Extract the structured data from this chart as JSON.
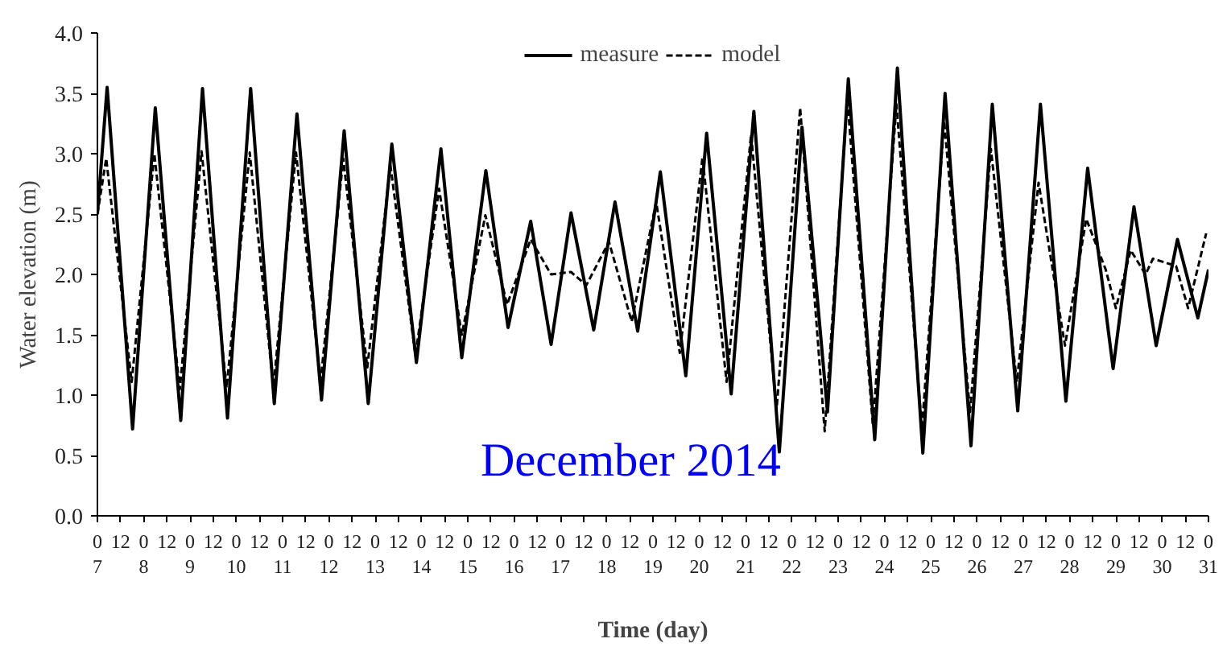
{
  "chart_data": {
    "type": "line",
    "xlabel": "Time (day)",
    "ylabel": "Water elevation (m)",
    "annotations": [
      "December 2014"
    ],
    "xlim": [
      "2014-12-07T00:00",
      "2014-12-31T00:00"
    ],
    "ylim": [
      0,
      4
    ],
    "xticks": [
      {
        "value": "2014-12-07T00:00",
        "label": "0\n7"
      },
      {
        "value": "2014-12-07T12:00",
        "label": "12"
      },
      {
        "value": "2014-12-08T00:00",
        "label": "0\n8"
      },
      {
        "value": "2014-12-08T12:00",
        "label": "12"
      },
      {
        "value": "2014-12-09T00:00",
        "label": "0\n9"
      },
      {
        "value": "2014-12-09T12:00",
        "label": "12"
      },
      {
        "value": "2014-12-10T00:00",
        "label": "0\n10"
      },
      {
        "value": "2014-12-10T12:00",
        "label": "12"
      },
      {
        "value": "2014-12-11T00:00",
        "label": "0\n11"
      },
      {
        "value": "2014-12-11T12:00",
        "label": "12"
      },
      {
        "value": "2014-12-12T00:00",
        "label": "0\n12"
      },
      {
        "value": "2014-12-12T12:00",
        "label": "12"
      },
      {
        "value": "2014-12-13T00:00",
        "label": "0\n13"
      },
      {
        "value": "2014-12-13T12:00",
        "label": "12"
      },
      {
        "value": "2014-12-14T00:00",
        "label": "0\n14"
      },
      {
        "value": "2014-12-14T12:00",
        "label": "12"
      },
      {
        "value": "2014-12-15T00:00",
        "label": "0\n15"
      },
      {
        "value": "2014-12-15T12:00",
        "label": "12"
      },
      {
        "value": "2014-12-16T00:00",
        "label": "0\n16"
      },
      {
        "value": "2014-12-16T12:00",
        "label": "12"
      },
      {
        "value": "2014-12-17T00:00",
        "label": "0\n17"
      },
      {
        "value": "2014-12-17T12:00",
        "label": "12"
      },
      {
        "value": "2014-12-18T00:00",
        "label": "0\n18"
      },
      {
        "value": "2014-12-18T12:00",
        "label": "12"
      },
      {
        "value": "2014-12-19T00:00",
        "label": "0\n19"
      },
      {
        "value": "2014-12-19T12:00",
        "label": "12"
      },
      {
        "value": "2014-12-20T00:00",
        "label": "0\n20"
      },
      {
        "value": "2014-12-20T12:00",
        "label": "12"
      },
      {
        "value": "2014-12-21T00:00",
        "label": "0\n21"
      },
      {
        "value": "2014-12-21T12:00",
        "label": "12"
      },
      {
        "value": "2014-12-22T00:00",
        "label": "0\n22"
      },
      {
        "value": "2014-12-22T12:00",
        "label": "12"
      },
      {
        "value": "2014-12-23T00:00",
        "label": "0\n23"
      },
      {
        "value": "2014-12-23T12:00",
        "label": "12"
      },
      {
        "value": "2014-12-24T00:00",
        "label": "0\n24"
      },
      {
        "value": "2014-12-24T12:00",
        "label": "12"
      },
      {
        "value": "2014-12-25T00:00",
        "label": "0\n25"
      },
      {
        "value": "2014-12-25T12:00",
        "label": "12"
      },
      {
        "value": "2014-12-26T00:00",
        "label": "0\n26"
      },
      {
        "value": "2014-12-26T12:00",
        "label": "12"
      },
      {
        "value": "2014-12-27T00:00",
        "label": "0\n27"
      },
      {
        "value": "2014-12-27T12:00",
        "label": "12"
      },
      {
        "value": "2014-12-28T00:00",
        "label": "0\n28"
      },
      {
        "value": "2014-12-28T12:00",
        "label": "12"
      },
      {
        "value": "2014-12-29T00:00",
        "label": "0\n29"
      },
      {
        "value": "2014-12-29T12:00",
        "label": "12"
      },
      {
        "value": "2014-12-30T00:00",
        "label": "0\n30"
      },
      {
        "value": "2014-12-30T12:00",
        "label": "12"
      },
      {
        "value": "2014-12-31T00:00",
        "label": "0\n31"
      }
    ],
    "yticks": [
      {
        "value": 0,
        "label": "0.0"
      },
      {
        "value": 0.5,
        "label": "0.5"
      },
      {
        "value": 1,
        "label": "1.0"
      },
      {
        "value": 1.5,
        "label": "1.5"
      },
      {
        "value": 2,
        "label": "2.0"
      },
      {
        "value": 2.5,
        "label": "2.5"
      },
      {
        "value": 3,
        "label": "3.0"
      },
      {
        "value": 3.5,
        "label": "3.5"
      },
      {
        "value": 4,
        "label": "4.0"
      }
    ],
    "grid": false,
    "legend": "top",
    "marker": "none",
    "series": [
      {
        "name": "measure",
        "color": "#000000",
        "line_style": "solid",
        "x": [
          "2014-12-07T00:00",
          "2014-12-07T05:02",
          "2014-12-07T18:14",
          "2014-12-08T06:00",
          "2014-12-08T19:12",
          "2014-12-09T06:29",
          "2014-12-09T19:26",
          "2014-12-10T07:26",
          "2014-12-10T19:41",
          "2014-12-11T07:26",
          "2014-12-11T20:10",
          "2014-12-12T07:55",
          "2014-12-12T20:24",
          "2014-12-13T08:38",
          "2014-12-13T21:22",
          "2014-12-14T10:05",
          "2014-12-14T20:53",
          "2014-12-15T09:22",
          "2014-12-15T20:53",
          "2014-12-16T08:38",
          "2014-12-16T19:12",
          "2014-12-17T05:31",
          "2014-12-17T17:17",
          "2014-12-18T04:19",
          "2014-12-18T16:05",
          "2014-12-19T03:50",
          "2014-12-19T17:02",
          "2014-12-20T03:50",
          "2014-12-20T16:34",
          "2014-12-21T04:19",
          "2014-12-21T17:31",
          "2014-12-22T05:17",
          "2014-12-22T18:29",
          "2014-12-23T05:17",
          "2014-12-23T18:58",
          "2014-12-24T06:43",
          "2014-12-24T19:55",
          "2014-12-25T07:26",
          "2014-12-25T20:53",
          "2014-12-26T07:55",
          "2014-12-26T21:07",
          "2014-12-27T08:53",
          "2014-12-27T22:05",
          "2014-12-28T09:22",
          "2014-12-28T22:34",
          "2014-12-29T09:22",
          "2014-12-29T20:53",
          "2014-12-30T07:55",
          "2014-12-30T18:29",
          "2014-12-31T00:00"
        ],
        "values": [
          2.5,
          3.55,
          0.72,
          3.38,
          0.79,
          3.54,
          0.81,
          3.54,
          0.93,
          3.33,
          0.96,
          3.19,
          0.93,
          3.08,
          1.27,
          3.04,
          1.31,
          2.86,
          1.56,
          2.44,
          1.42,
          2.51,
          1.54,
          2.6,
          1.53,
          2.85,
          1.16,
          3.17,
          1.01,
          3.35,
          0.53,
          3.22,
          0.86,
          3.62,
          0.63,
          3.71,
          0.52,
          3.5,
          0.58,
          3.41,
          0.87,
          3.41,
          0.95,
          2.88,
          1.22,
          2.56,
          1.41,
          2.29,
          1.64,
          2.04
        ]
      },
      {
        "name": "model",
        "color": "#000000",
        "line_style": "dashed",
        "x": [
          "2014-12-07T00:00",
          "2014-12-07T04:34",
          "2014-12-07T17:46",
          "2014-12-08T05:31",
          "2014-12-08T18:43",
          "2014-12-09T06:00",
          "2014-12-09T18:58",
          "2014-12-10T06:58",
          "2014-12-10T19:12",
          "2014-12-11T06:58",
          "2014-12-11T19:41",
          "2014-12-12T07:26",
          "2014-12-12T19:55",
          "2014-12-13T07:55",
          "2014-12-13T20:53",
          "2014-12-14T09:07",
          "2014-12-14T20:53",
          "2014-12-15T09:07",
          "2014-12-15T20:24",
          "2014-12-16T08:38",
          "2014-12-16T19:12",
          "2014-12-17T05:31",
          "2014-12-17T13:26",
          "2014-12-18T01:12",
          "2014-12-18T12:58",
          "2014-12-19T01:41",
          "2014-12-19T13:55",
          "2014-12-20T01:41",
          "2014-12-20T14:10",
          "2014-12-21T02:53",
          "2014-12-21T16:05",
          "2014-12-22T04:19",
          "2014-12-22T17:02",
          "2014-12-23T04:48",
          "2014-12-23T18:00",
          "2014-12-24T06:14",
          "2014-12-24T19:26",
          "2014-12-25T06:58",
          "2014-12-25T20:24",
          "2014-12-26T07:12",
          "2014-12-26T20:38",
          "2014-12-27T07:55",
          "2014-12-27T21:36",
          "2014-12-28T08:38",
          "2014-12-28T18:43",
          "2014-12-29T00:00",
          "2014-12-29T07:41",
          "2014-12-29T15:22",
          "2014-12-29T19:12",
          "2014-12-30T07:12",
          "2014-12-30T13:26",
          "2014-12-30T22:48"
        ],
        "values": [
          2.5,
          2.96,
          1.11,
          3.0,
          1.05,
          3.02,
          1.06,
          3.01,
          1.06,
          3.01,
          1.11,
          2.96,
          1.23,
          2.9,
          1.33,
          2.71,
          1.5,
          2.49,
          1.75,
          2.29,
          2.0,
          2.02,
          1.91,
          2.27,
          1.61,
          2.6,
          1.35,
          2.97,
          1.11,
          3.16,
          0.88,
          3.38,
          0.7,
          3.45,
          0.75,
          3.41,
          0.72,
          3.27,
          0.86,
          3.04,
          1.11,
          2.76,
          1.41,
          2.46,
          2.04,
          1.72,
          2.2,
          2.0,
          2.13,
          2.07,
          1.72,
          2.34
        ]
      }
    ]
  }
}
